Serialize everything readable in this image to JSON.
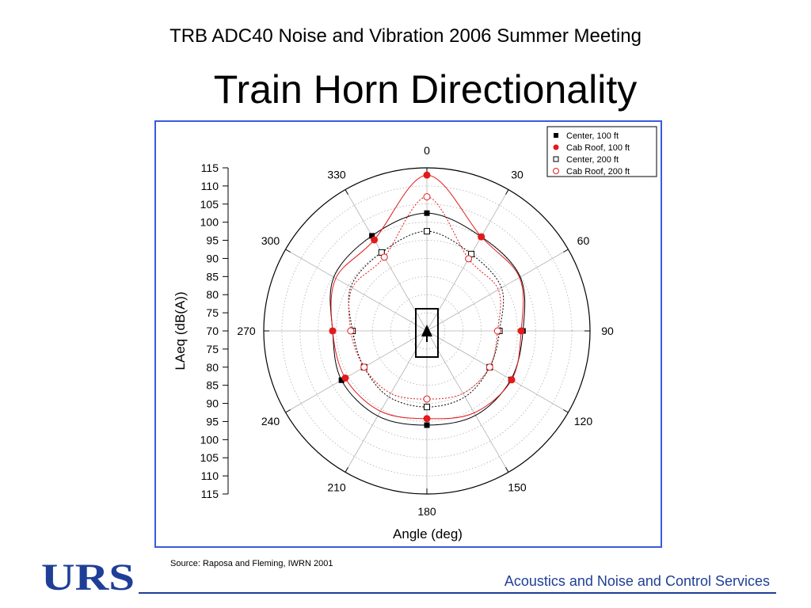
{
  "slide": {
    "meeting": "TRB ADC40 Noise and Vibration 2006 Summer Meeting",
    "title": "Train Horn Directionality",
    "source": "Source: Raposa and Fleming, IWRN 2001",
    "logo": "URS",
    "company": "Acoustics and Noise and Control Services",
    "accent_color": "#1f3f97",
    "frame_color": "#3b5bdb"
  },
  "chart_data": {
    "type": "polar",
    "xlabel": "Angle (deg)",
    "ylabel": "LAeq (dB(A))",
    "r_min": 70,
    "r_max": 115,
    "r_ticks": [
      115,
      110,
      105,
      100,
      95,
      90,
      85,
      80,
      75,
      70,
      75,
      80,
      85,
      90,
      95,
      100,
      105,
      110,
      115
    ],
    "angle_ticks": [
      "0",
      "30",
      "60",
      "90",
      "120",
      "150",
      "180",
      "210",
      "240",
      "270",
      "300",
      "330"
    ],
    "angle_values": [
      0,
      30,
      60,
      90,
      120,
      150,
      180,
      210,
      240,
      270,
      300,
      330
    ],
    "legend_position": "top-right",
    "grid": true,
    "series": [
      {
        "name": "Center, 100 ft",
        "marker": "square-filled",
        "color": "#000000",
        "line_style": "solid",
        "angles": [
          0,
          30,
          90,
          120,
          180,
          240,
          270,
          330
        ],
        "values": [
          102.5,
          100,
          96.5,
          96.8,
          96.0,
          97.2,
          96.0,
          100.3
        ]
      },
      {
        "name": "Cab Roof, 100 ft",
        "marker": "circle-filled",
        "color": "#e31a1c",
        "line_style": "solid",
        "angles": [
          0,
          30,
          90,
          120,
          180,
          240,
          270,
          330
        ],
        "values": [
          113.0,
          100.0,
          96.0,
          97.0,
          94.2,
          96.0,
          96.0,
          99.0
        ]
      },
      {
        "name": "Center, 200 ft",
        "marker": "square-open",
        "color": "#000000",
        "line_style": "dotted",
        "angles": [
          0,
          30,
          90,
          120,
          180,
          240,
          270,
          330
        ],
        "values": [
          97.5,
          94.5,
          90.0,
          90.0,
          91.0,
          90.0,
          90.5,
          95.0
        ]
      },
      {
        "name": "Cab Roof, 200 ft",
        "marker": "circle-open",
        "color": "#e31a1c",
        "line_style": "dotted",
        "angles": [
          0,
          30,
          90,
          120,
          180,
          240,
          270,
          330
        ],
        "values": [
          107.0,
          93.0,
          89.5,
          90.0,
          88.8,
          90.0,
          91.0,
          93.5
        ]
      }
    ]
  }
}
